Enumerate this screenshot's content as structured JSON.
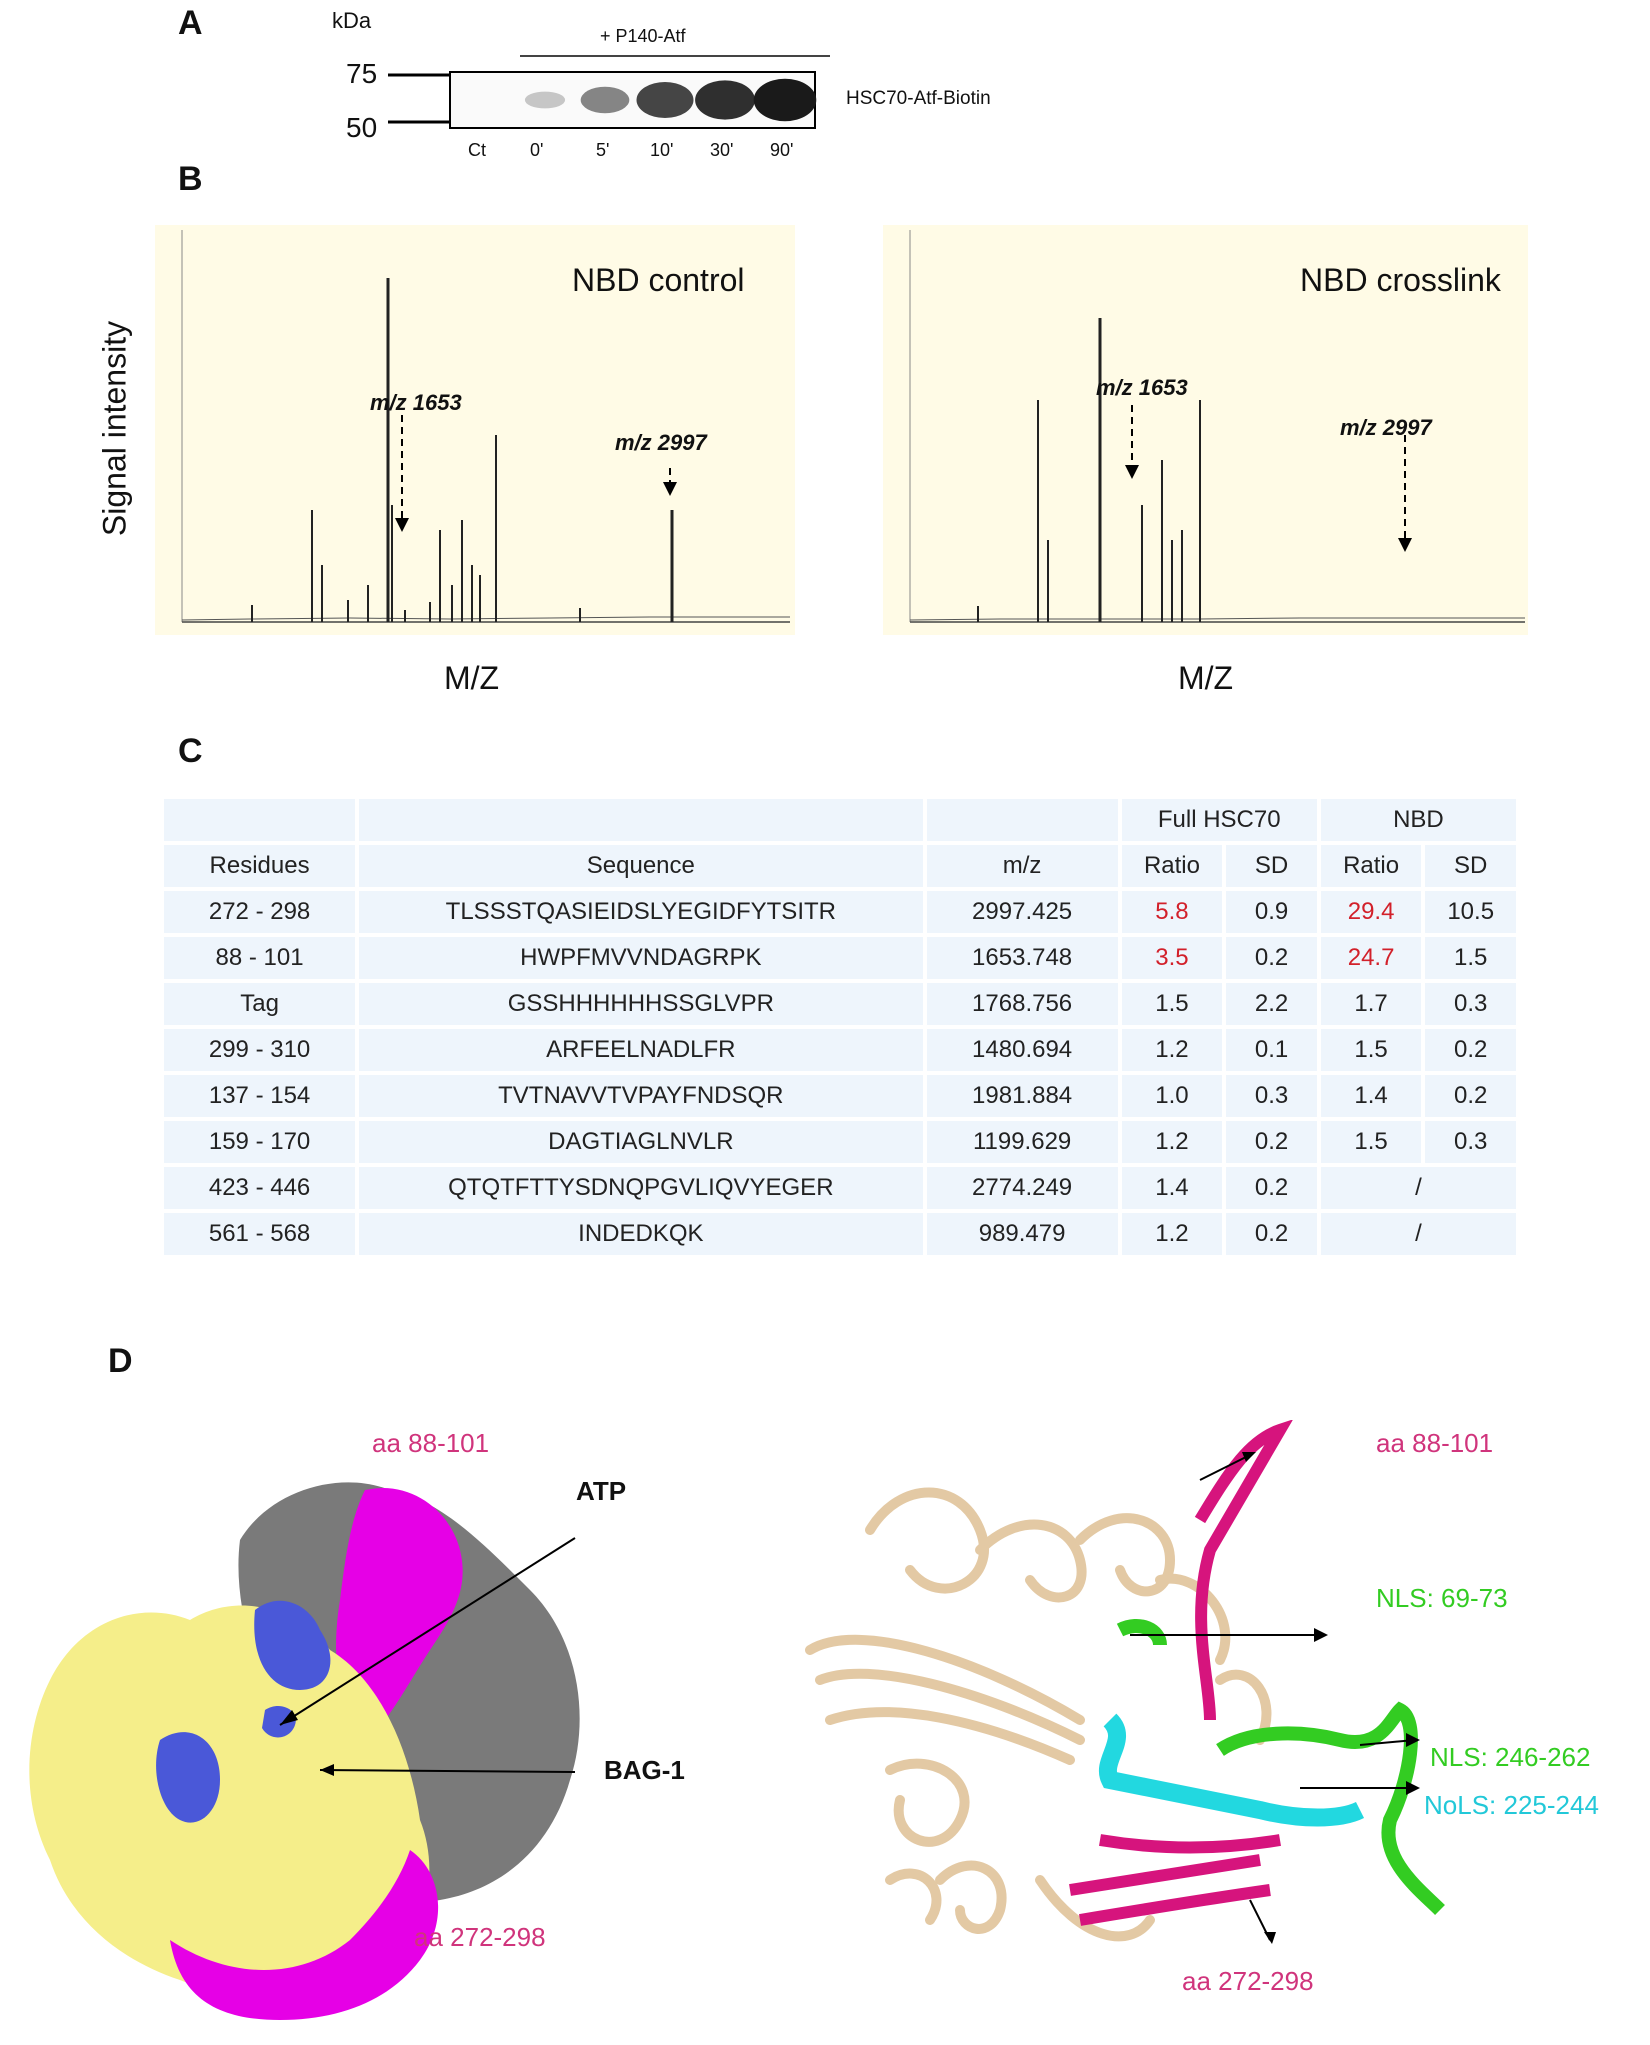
{
  "panelA": {
    "letter": "A",
    "kda": "kDa",
    "mw_75": "75",
    "mw_50": "50",
    "treatment": "+ P140-Atf",
    "band_label": "HSC70-Atf-Biotin",
    "lanes": [
      "Ct",
      "0'",
      "5'",
      "10'",
      "30'",
      "90'"
    ],
    "band_intensity": [
      0.0,
      0.15,
      0.45,
      0.75,
      0.85,
      0.95
    ]
  },
  "panelB": {
    "letter": "B",
    "ylabel": "Signal intensity",
    "left": {
      "title": "NBD control",
      "xlabel": "M/Z",
      "peak1": "m/z 1653",
      "peak2": "m/z 2997"
    },
    "right": {
      "title": "NBD crosslink",
      "xlabel": "M/Z",
      "peak1": "m/z 1653",
      "peak2": "m/z 2997"
    }
  },
  "panelC": {
    "letter": "C",
    "group_full": "Full HSC70",
    "group_nbd": "NBD",
    "headers": [
      "Residues",
      "Sequence",
      "m/z",
      "Ratio",
      "SD",
      "Ratio",
      "SD"
    ],
    "rows": [
      {
        "res": "272 - 298",
        "seq": "TLSSSTQASIEIDSLYEGIDFYTSITR",
        "mz": "2997.425",
        "fr": "5.8",
        "fsd": "0.9",
        "nr": "29.4",
        "nsd": "10.5"
      },
      {
        "res": "88 - 101",
        "seq": "HWPFMVVNDAGRPK",
        "mz": "1653.748",
        "fr": "3.5",
        "fsd": "0.2",
        "nr": "24.7",
        "nsd": "1.5"
      },
      {
        "res": "Tag",
        "seq": "GSSHHHHHHSSGLVPR",
        "mz": "1768.756",
        "fr": "1.5",
        "fsd": "2.2",
        "nr": "1.7",
        "nsd": "0.3"
      },
      {
        "res": "299 - 310",
        "seq": "ARFEELNADLFR",
        "mz": "1480.694",
        "fr": "1.2",
        "fsd": "0.1",
        "nr": "1.5",
        "nsd": "0.2"
      },
      {
        "res": "137 - 154",
        "seq": "TVTNAVVTVPAYFNDSQR",
        "mz": "1981.884",
        "fr": "1.0",
        "fsd": "0.3",
        "nr": "1.4",
        "nsd": "0.2"
      },
      {
        "res": "159 - 170",
        "seq": "DAGTIAGLNVLR",
        "mz": "1199.629",
        "fr": "1.2",
        "fsd": "0.2",
        "nr": "1.5",
        "nsd": "0.3"
      },
      {
        "res": "423 - 446",
        "seq": "QTQTFTTYSDNQPGVLIQVYEGER",
        "mz": "2774.249",
        "fr": "1.4",
        "fsd": "0.2",
        "nr": "/",
        "nsd": ""
      },
      {
        "res": "561 - 568",
        "seq": "INDEDKQK",
        "mz": "989.479",
        "fr": "1.2",
        "fsd": "0.2",
        "nr": "/",
        "nsd": ""
      }
    ]
  },
  "panelD": {
    "letter": "D",
    "surface": {
      "aa1": "aa 88-101",
      "aa2": "aa 272-298",
      "atp": "ATP",
      "bag": "BAG-1"
    },
    "ribbon": {
      "aa1": "aa 88-101",
      "nls1": "NLS: 69-73",
      "nls2": "NLS: 246-262",
      "nols": "NoLS: 225-244",
      "aa2": "aa 272-298"
    },
    "colors": {
      "magenta": "#e600e6",
      "pink_label": "#d0347c",
      "blue": "#4a58d8",
      "yellow": "#f5ee8a",
      "grey": "#7a7a7a",
      "green": "#33cc22",
      "cyan": "#22d8e0",
      "tan": "#e3c9a4"
    }
  }
}
